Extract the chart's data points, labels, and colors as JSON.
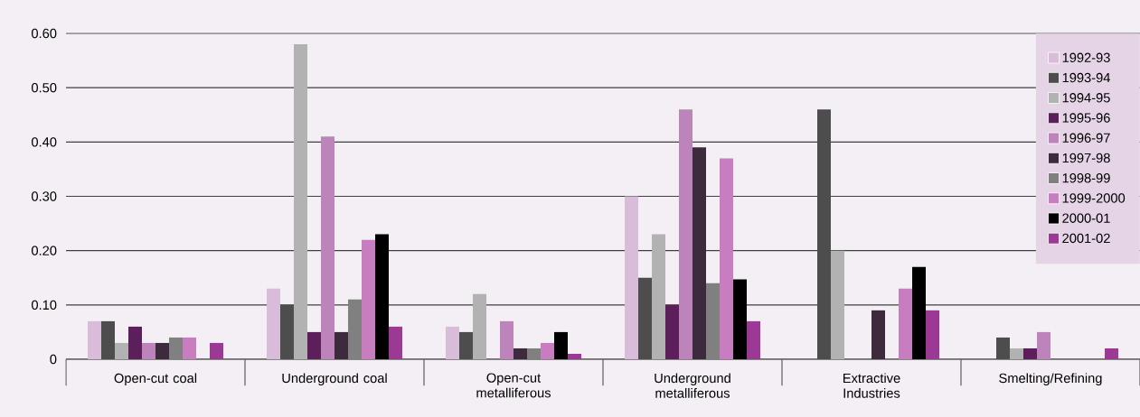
{
  "chart_data": {
    "type": "bar",
    "categories": [
      "Open-cut coal",
      "Underground coal",
      "Open-cut metalliferous",
      "Underground metalliferous",
      "Extractive Industries",
      "Smelting/Refining"
    ],
    "series": [
      {
        "name": "1992-93",
        "color": "#d8bcd9",
        "values": [
          0.07,
          0.13,
          0.06,
          0.3,
          0,
          0
        ]
      },
      {
        "name": "1993-94",
        "color": "#4d4d4d",
        "values": [
          0.07,
          0.1,
          0.05,
          0.15,
          0.46,
          0.04
        ]
      },
      {
        "name": "1994-95",
        "color": "#b2b2b2",
        "values": [
          0.03,
          0.58,
          0.12,
          0.23,
          0.2,
          0.02
        ]
      },
      {
        "name": "1995-96",
        "color": "#5c1f5c",
        "values": [
          0.06,
          0.05,
          0,
          0.1,
          0,
          0.02
        ]
      },
      {
        "name": "1996-97",
        "color": "#bc84bb",
        "values": [
          0.03,
          0.41,
          0.07,
          0.46,
          0,
          0.05
        ]
      },
      {
        "name": "1997-98",
        "color": "#3d2a3d",
        "values": [
          0.03,
          0.05,
          0.02,
          0.39,
          0.09,
          0
        ]
      },
      {
        "name": "1998-99",
        "color": "#808080",
        "values": [
          0.04,
          0.11,
          0.02,
          0.14,
          0,
          0
        ]
      },
      {
        "name": "1999-2000",
        "color": "#c77dc0",
        "values": [
          0.04,
          0.22,
          0.03,
          0.37,
          0.13,
          0
        ]
      },
      {
        "name": "2000-01",
        "color": "#000000",
        "values": [
          0,
          0.23,
          0.05,
          0.147,
          0.17,
          0
        ]
      },
      {
        "name": "2001-02",
        "color": "#9b3994",
        "values": [
          0.03,
          0.06,
          0.01,
          0.07,
          0.09,
          0.02
        ]
      }
    ],
    "ylim": [
      0,
      0.6
    ],
    "yticks": [
      0,
      {
        "value": 0.1,
        "label": "0.10"
      },
      {
        "value": 0.2,
        "label": "0.20"
      },
      {
        "value": 0.3,
        "label": "0.30"
      },
      {
        "value": 0.4,
        "label": "0.40"
      },
      {
        "value": 0.5,
        "label": "0.50"
      },
      {
        "value": 0.6,
        "label": "0.60"
      }
    ],
    "grid": "y",
    "legend": "top right"
  }
}
